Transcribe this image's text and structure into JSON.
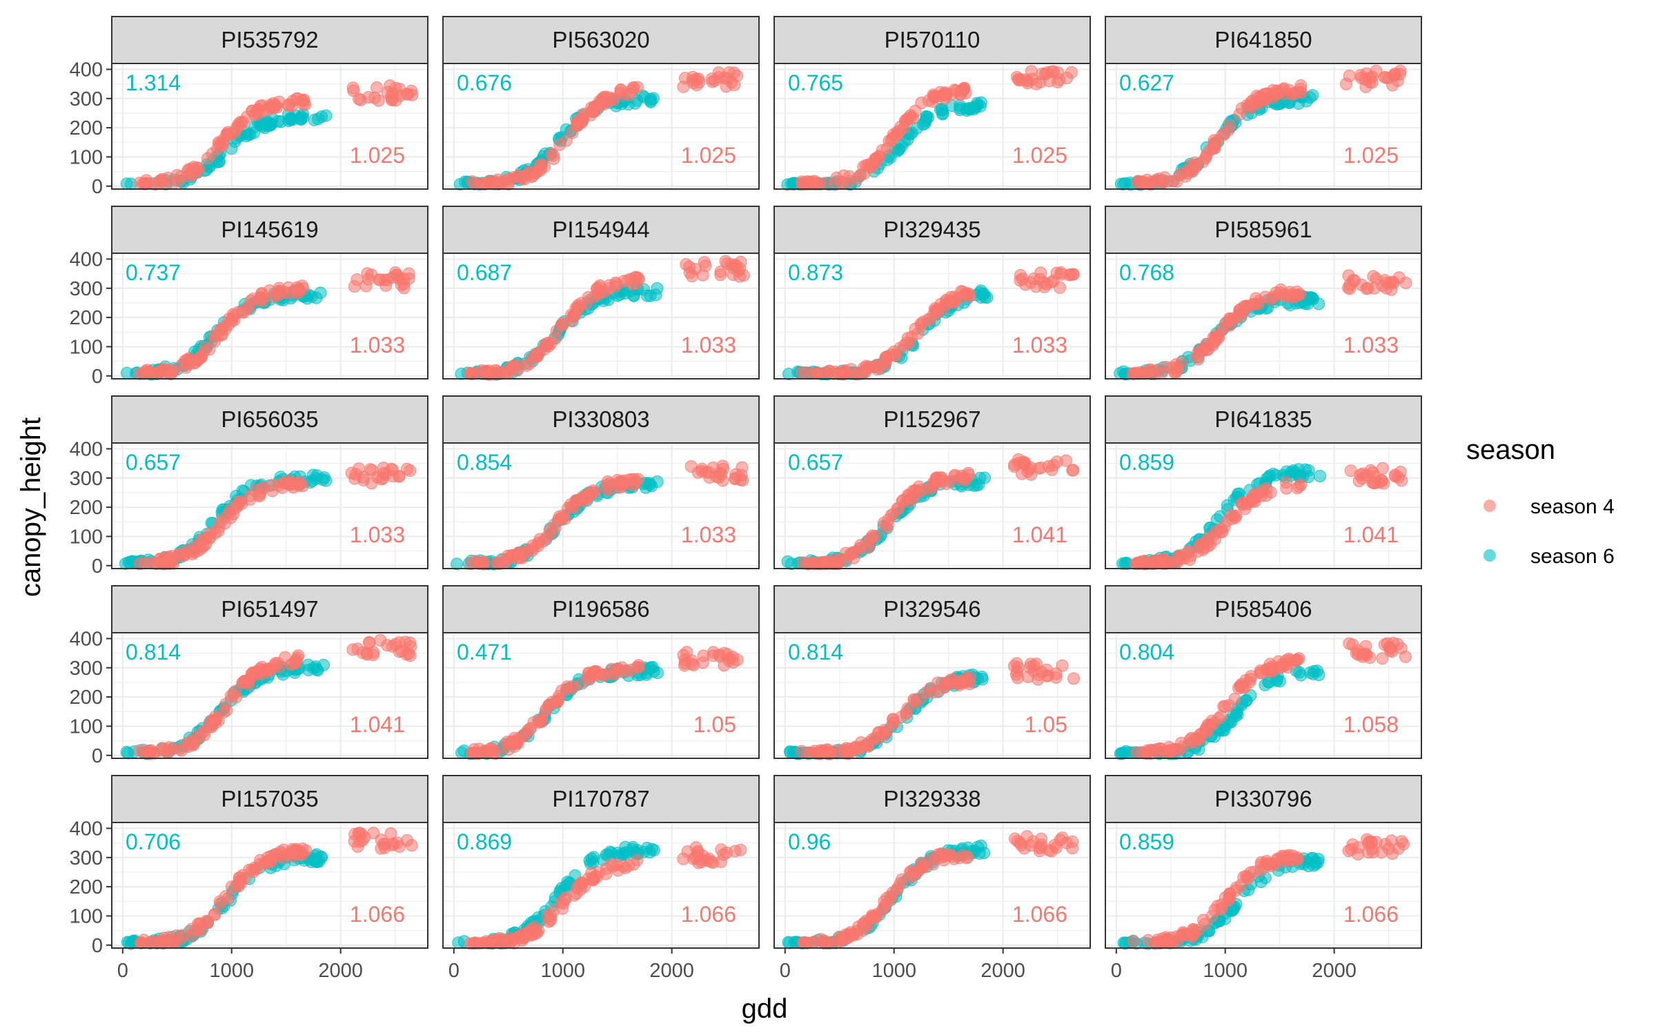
{
  "chart_data": {
    "type": "scatter",
    "facet_layout": "5 rows x 4 columns, shared axes",
    "xlabel": "gdd",
    "ylabel": "canopy_height",
    "xlim": [
      -100,
      2800
    ],
    "ylim": [
      -10,
      420
    ],
    "x_ticks": [
      0,
      1000,
      2000
    ],
    "y_ticks": [
      0,
      100,
      200,
      300,
      400
    ],
    "grid": true,
    "legend": {
      "title": "season",
      "position": "right",
      "entries": [
        {
          "name": "season 4",
          "color": "#F8766D"
        },
        {
          "name": "season 6",
          "color": "#00BFC4"
        }
      ]
    },
    "annotation_colors": {
      "season 6": "#00BFC4",
      "season 4": "#F8766D"
    },
    "series_summary_note": "Each panel: season 4 and season 6 canopy height vs gdd, sigmoid growth to plateau",
    "panels": [
      {
        "title": "PI535792",
        "label_season6": "1.314",
        "label_season4": "1.025",
        "s4_max": 330,
        "s6_max": 240,
        "s4_mid": 900,
        "s6_mid": 950
      },
      {
        "title": "PI563020",
        "label_season6": "0.676",
        "label_season4": "1.025",
        "s4_max": 380,
        "s6_max": 300,
        "s4_mid": 1050,
        "s6_mid": 950
      },
      {
        "title": "PI570110",
        "label_season6": "0.765",
        "label_season4": "1.025",
        "s4_max": 380,
        "s6_max": 280,
        "s4_mid": 1000,
        "s6_mid": 1050
      },
      {
        "title": "PI641850",
        "label_season6": "0.627",
        "label_season4": "1.025",
        "s4_max": 380,
        "s6_max": 300,
        "s4_mid": 950,
        "s6_mid": 900
      },
      {
        "title": "PI145619",
        "label_season6": "0.737",
        "label_season4": "1.033",
        "s4_max": 340,
        "s6_max": 280,
        "s4_mid": 900,
        "s6_mid": 850
      },
      {
        "title": "PI154944",
        "label_season6": "0.687",
        "label_season4": "1.033",
        "s4_max": 380,
        "s6_max": 290,
        "s4_mid": 1000,
        "s6_mid": 950
      },
      {
        "title": "PI329435",
        "label_season6": "0.873",
        "label_season4": "1.033",
        "s4_max": 340,
        "s6_max": 290,
        "s4_mid": 1200,
        "s6_mid": 1250
      },
      {
        "title": "PI585961",
        "label_season6": "0.768",
        "label_season4": "1.033",
        "s4_max": 330,
        "s6_max": 260,
        "s4_mid": 950,
        "s6_mid": 900
      },
      {
        "title": "PI656035",
        "label_season6": "0.657",
        "label_season4": "1.033",
        "s4_max": 320,
        "s6_max": 300,
        "s4_mid": 900,
        "s6_mid": 850
      },
      {
        "title": "PI330803",
        "label_season6": "0.854",
        "label_season4": "1.033",
        "s4_max": 330,
        "s6_max": 280,
        "s4_mid": 950,
        "s6_mid": 950
      },
      {
        "title": "PI152967",
        "label_season6": "0.657",
        "label_season4": "1.041",
        "s4_max": 350,
        "s6_max": 290,
        "s4_mid": 950,
        "s6_mid": 950
      },
      {
        "title": "PI641835",
        "label_season6": "0.859",
        "label_season4": "1.041",
        "s4_max": 320,
        "s6_max": 320,
        "s4_mid": 1000,
        "s6_mid": 950
      },
      {
        "title": "PI651497",
        "label_season6": "0.814",
        "label_season4": "1.041",
        "s4_max": 380,
        "s6_max": 300,
        "s4_mid": 950,
        "s6_mid": 900
      },
      {
        "title": "PI196586",
        "label_season6": "0.471",
        "label_season4": "1.05",
        "s4_max": 340,
        "s6_max": 290,
        "s4_mid": 850,
        "s6_mid": 850
      },
      {
        "title": "PI329546",
        "label_season6": "0.814",
        "label_season4": "1.05",
        "s4_max": 300,
        "s6_max": 270,
        "s4_mid": 1050,
        "s6_mid": 1100
      },
      {
        "title": "PI585406",
        "label_season6": "0.804",
        "label_season4": "1.058",
        "s4_max": 370,
        "s6_max": 290,
        "s4_mid": 1000,
        "s6_mid": 1100
      },
      {
        "title": "PI157035",
        "label_season6": "0.706",
        "label_season4": "1.066",
        "s4_max": 370,
        "s6_max": 300,
        "s4_mid": 950,
        "s6_mid": 950
      },
      {
        "title": "PI170787",
        "label_season6": "0.869",
        "label_season4": "1.066",
        "s4_max": 320,
        "s6_max": 330,
        "s4_mid": 1000,
        "s6_mid": 950
      },
      {
        "title": "PI329338",
        "label_season6": "0.96",
        "label_season4": "1.066",
        "s4_max": 360,
        "s6_max": 330,
        "s4_mid": 950,
        "s6_mid": 1000
      },
      {
        "title": "PI330796",
        "label_season6": "0.859",
        "label_season4": "1.066",
        "s4_max": 350,
        "s6_max": 290,
        "s4_mid": 1000,
        "s6_mid": 1100
      }
    ]
  }
}
